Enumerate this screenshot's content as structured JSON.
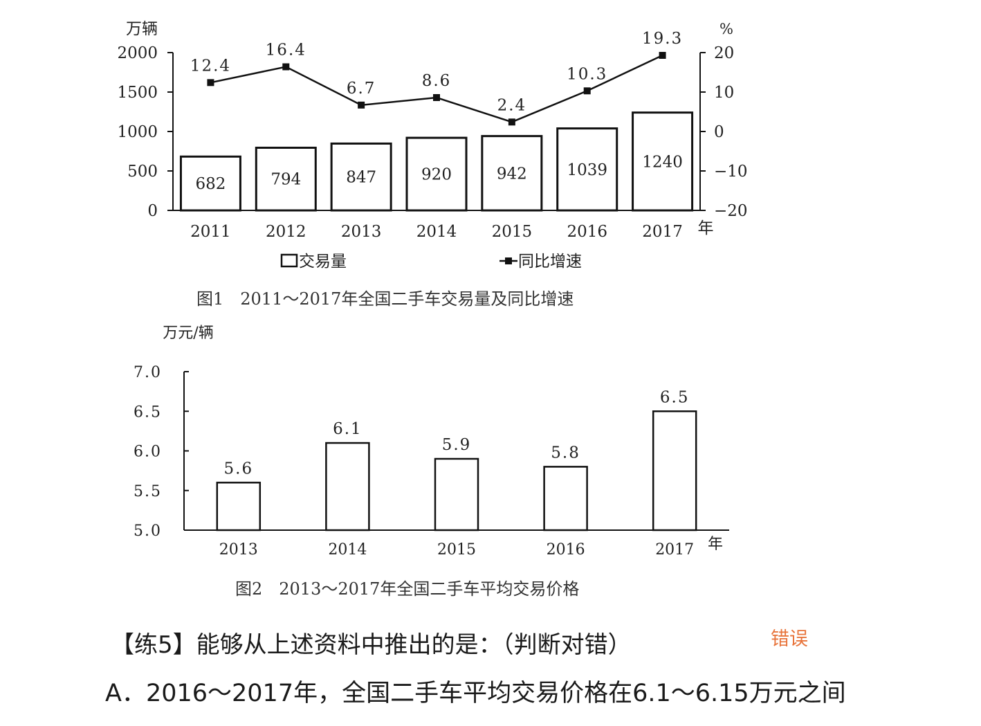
{
  "chart_data": [
    {
      "type": "bar",
      "title": "图1　2011～2017年全国二手车交易量及同比增速",
      "categories": [
        "2011",
        "2012",
        "2013",
        "2014",
        "2015",
        "2016",
        "2017"
      ],
      "x_unit": "年",
      "y_left_unit": "万辆",
      "y_right_unit": "%",
      "y_left_ticks": [
        "0",
        "500",
        "1000",
        "1500",
        "2000"
      ],
      "y_left_lim": [
        0,
        2000
      ],
      "y_right_ticks": [
        "−20",
        "−10",
        "0",
        "10",
        "20"
      ],
      "y_right_lim": [
        -20,
        20
      ],
      "series": [
        {
          "name": "交易量",
          "type": "bar",
          "axis": "left",
          "values": [
            682,
            794,
            847,
            920,
            942,
            1039,
            1240
          ],
          "labels": [
            "682",
            "794",
            "847",
            "920",
            "942",
            "1039",
            "1240"
          ]
        },
        {
          "name": "同比增速",
          "type": "line",
          "axis": "right",
          "values": [
            12.4,
            16.4,
            6.7,
            8.6,
            2.4,
            10.3,
            19.3
          ],
          "labels": [
            "12.4",
            "16.4",
            "6.7",
            "8.6",
            "2.4",
            "10.3",
            "19.3"
          ]
        }
      ],
      "legend_position": "bottom",
      "grid": false
    },
    {
      "type": "bar",
      "title": "图2　2013～2017年全国二手车平均交易价格",
      "categories": [
        "2013",
        "2014",
        "2015",
        "2016",
        "2017"
      ],
      "x_unit": "年",
      "y_unit": "万元/辆",
      "y_ticks": [
        "5.0",
        "5.5",
        "6.0",
        "6.5",
        "7.0"
      ],
      "ylim": [
        5.0,
        7.0
      ],
      "values": [
        5.6,
        6.1,
        5.9,
        5.8,
        6.5
      ],
      "labels": [
        "5.6",
        "6.1",
        "5.9",
        "5.8",
        "6.5"
      ],
      "grid": false
    }
  ],
  "question": {
    "title": "【练5】能够从上述资料中推出的是：（判断对错）",
    "tag": "错误",
    "option_a": "A．2016～2017年，全国二手车平均交易价格在6.1～6.15万元之间"
  }
}
